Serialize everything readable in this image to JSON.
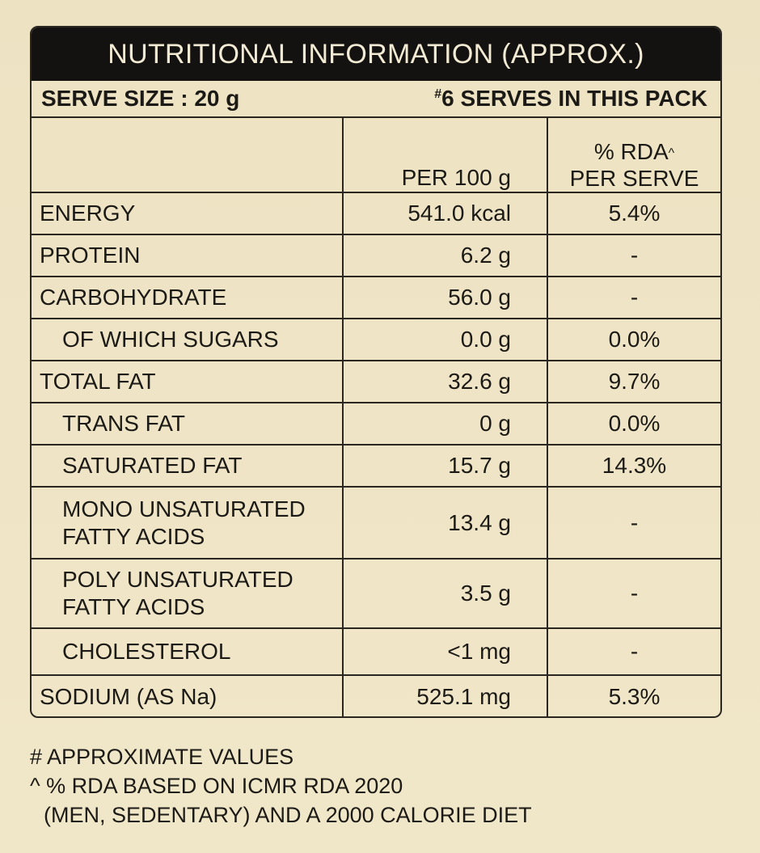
{
  "title": "NUTRITIONAL INFORMATION (APPROX.)",
  "serve_size": "SERVE SIZE : 20 g",
  "serves_mark": "#",
  "serves_text": "6 SERVES IN THIS PACK",
  "columns": {
    "per100_header": "PER 100 g",
    "rda_header_line1": "% RDA",
    "rda_mark": "^",
    "rda_header_line2": "PER SERVE"
  },
  "rows": [
    {
      "name": "ENERGY",
      "per100": "541.0 kcal",
      "rda": "5.4%"
    },
    {
      "name": "PROTEIN",
      "per100": "6.2 g",
      "rda": "-"
    },
    {
      "name": "CARBOHYDRATE",
      "per100": "56.0 g",
      "rda": "-"
    },
    {
      "name": "OF WHICH SUGARS",
      "per100": "0.0 g",
      "rda": "0.0%"
    },
    {
      "name": "TOTAL FAT",
      "per100": "32.6 g",
      "rda": "9.7%"
    },
    {
      "name": "TRANS FAT",
      "per100": "0 g",
      "rda": "0.0%"
    },
    {
      "name": "SATURATED FAT",
      "per100": "15.7 g",
      "rda": "14.3%"
    },
    {
      "name_line1": "MONO UNSATURATED",
      "name_line2": "FATTY ACIDS",
      "per100": "13.4 g",
      "rda": "-"
    },
    {
      "name_line1": "POLY UNSATURATED",
      "name_line2": "FATTY ACIDS",
      "per100": "3.5 g",
      "rda": "-"
    },
    {
      "name": "CHOLESTEROL",
      "per100": "<1 mg",
      "rda": "-"
    },
    {
      "name": "SODIUM (AS Na)",
      "per100": "525.1 mg",
      "rda": "5.3%"
    }
  ],
  "footnotes": {
    "approx": "# APPROXIMATE VALUES",
    "rda_basis_line1": "^ % RDA BASED ON ICMR RDA 2020",
    "rda_basis_line2": "(MEN, SEDENTARY) AND A 2000 CALORIE DIET"
  }
}
